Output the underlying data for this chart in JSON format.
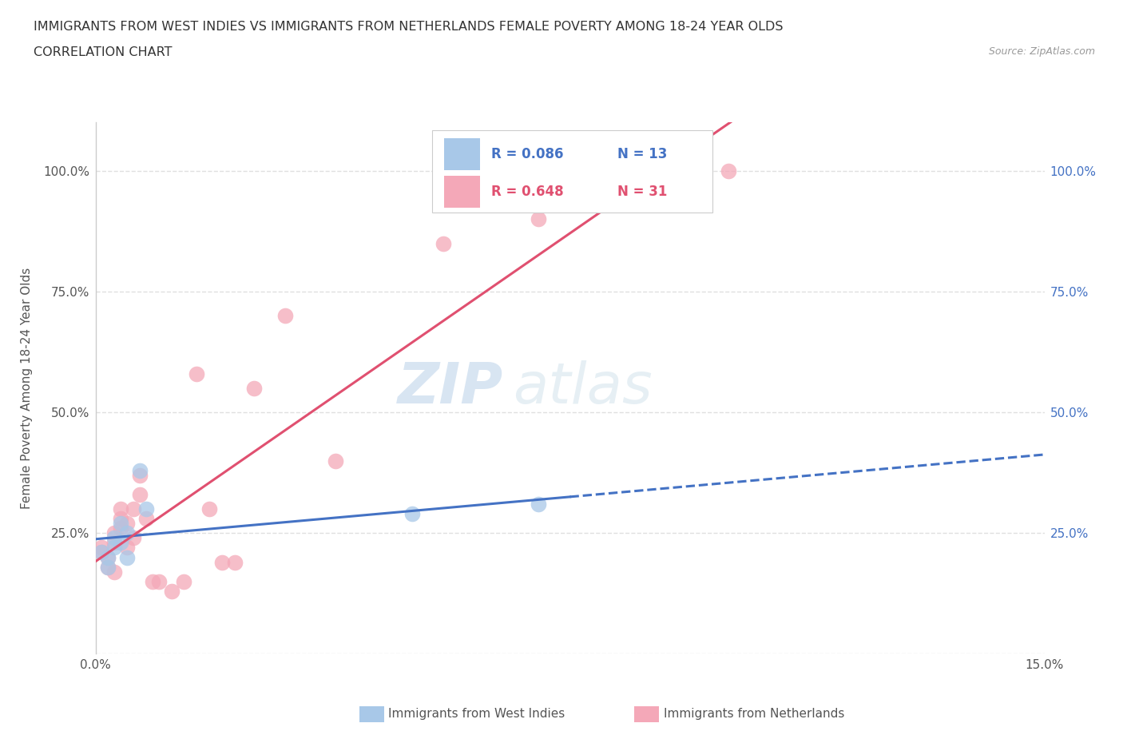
{
  "title_line1": "IMMIGRANTS FROM WEST INDIES VS IMMIGRANTS FROM NETHERLANDS FEMALE POVERTY AMONG 18-24 YEAR OLDS",
  "title_line2": "CORRELATION CHART",
  "source": "Source: ZipAtlas.com",
  "ylabel": "Female Poverty Among 18-24 Year Olds",
  "watermark": "ZIPatlas",
  "xlim": [
    0.0,
    0.15
  ],
  "ylim": [
    0.0,
    1.1
  ],
  "legend_r1": "R = 0.086",
  "legend_n1": "N = 13",
  "legend_r2": "R = 0.648",
  "legend_n2": "N = 31",
  "series1_label": "Immigrants from West Indies",
  "series2_label": "Immigrants from Netherlands",
  "color1": "#a8c8e8",
  "color2": "#f4a8b8",
  "trendline1_color": "#4472c4",
  "trendline2_color": "#e05070",
  "series1_x": [
    0.001,
    0.002,
    0.002,
    0.003,
    0.003,
    0.004,
    0.004,
    0.005,
    0.005,
    0.007,
    0.008,
    0.05,
    0.07
  ],
  "series1_y": [
    0.21,
    0.18,
    0.2,
    0.22,
    0.24,
    0.23,
    0.27,
    0.2,
    0.25,
    0.38,
    0.3,
    0.29,
    0.31
  ],
  "series2_x": [
    0.001,
    0.001,
    0.002,
    0.002,
    0.003,
    0.003,
    0.003,
    0.004,
    0.004,
    0.004,
    0.005,
    0.005,
    0.006,
    0.006,
    0.007,
    0.007,
    0.008,
    0.009,
    0.01,
    0.012,
    0.014,
    0.016,
    0.018,
    0.02,
    0.022,
    0.025,
    0.03,
    0.038,
    0.055,
    0.07,
    0.1
  ],
  "series2_y": [
    0.21,
    0.22,
    0.18,
    0.2,
    0.17,
    0.23,
    0.25,
    0.26,
    0.28,
    0.3,
    0.22,
    0.27,
    0.24,
    0.3,
    0.33,
    0.37,
    0.28,
    0.15,
    0.15,
    0.13,
    0.15,
    0.58,
    0.3,
    0.19,
    0.19,
    0.55,
    0.7,
    0.4,
    0.85,
    0.9,
    1.0
  ],
  "background_color": "#ffffff",
  "grid_color": "#e0e0e0"
}
